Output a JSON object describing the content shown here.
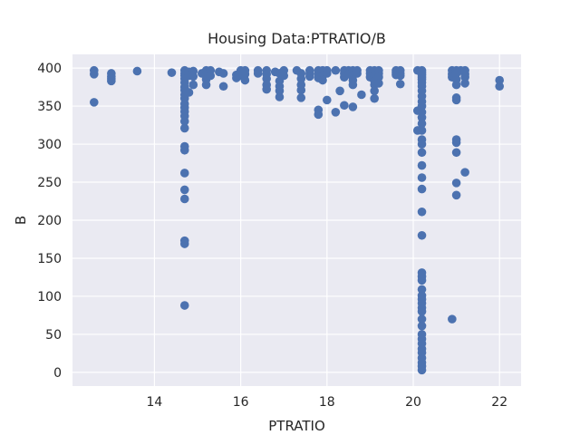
{
  "chart_data": {
    "type": "scatter",
    "title": "Housing Data:PTRATIO/B",
    "xlabel": "PTRATIO",
    "ylabel": "B",
    "xlim": [
      12.1,
      22.5
    ],
    "ylim": [
      -18,
      418
    ],
    "x_ticks": [
      14,
      16,
      18,
      20,
      22
    ],
    "y_ticks": [
      0,
      50,
      100,
      150,
      200,
      250,
      300,
      350,
      400
    ],
    "grid": true,
    "background": "#eaeaf2",
    "marker_color": "#4c72b0",
    "points": [
      [
        12.6,
        396.9
      ],
      [
        12.6,
        392.0
      ],
      [
        12.6,
        355.0
      ],
      [
        13.0,
        393.0
      ],
      [
        13.0,
        389.0
      ],
      [
        13.0,
        386.0
      ],
      [
        13.0,
        383.0
      ],
      [
        13.6,
        396.0
      ],
      [
        14.4,
        394.0
      ],
      [
        14.7,
        396.9
      ],
      [
        14.7,
        393.0
      ],
      [
        14.7,
        390.0
      ],
      [
        14.7,
        386.0
      ],
      [
        14.7,
        381.0
      ],
      [
        14.7,
        375.0
      ],
      [
        14.7,
        371.0
      ],
      [
        14.7,
        365.0
      ],
      [
        14.7,
        360.0
      ],
      [
        14.7,
        353.0
      ],
      [
        14.7,
        348.0
      ],
      [
        14.7,
        343.0
      ],
      [
        14.7,
        337.0
      ],
      [
        14.7,
        330.0
      ],
      [
        14.7,
        321.0
      ],
      [
        14.7,
        297.0
      ],
      [
        14.7,
        292.0
      ],
      [
        14.7,
        262.0
      ],
      [
        14.7,
        240.0
      ],
      [
        14.7,
        228.0
      ],
      [
        14.7,
        173.0
      ],
      [
        14.7,
        169.0
      ],
      [
        14.7,
        88.0
      ],
      [
        14.8,
        395.0
      ],
      [
        14.8,
        390.0
      ],
      [
        14.8,
        368.0
      ],
      [
        14.9,
        396.0
      ],
      [
        14.9,
        389.0
      ],
      [
        14.9,
        378.0
      ],
      [
        15.1,
        393.0
      ],
      [
        15.2,
        396.9
      ],
      [
        15.2,
        392.0
      ],
      [
        15.2,
        385.0
      ],
      [
        15.2,
        378.0
      ],
      [
        15.3,
        396.9
      ],
      [
        15.3,
        390.0
      ],
      [
        15.5,
        395.0
      ],
      [
        15.6,
        393.0
      ],
      [
        15.6,
        376.0
      ],
      [
        15.9,
        391.0
      ],
      [
        15.9,
        387.0
      ],
      [
        16.0,
        396.9
      ],
      [
        16.0,
        390.0
      ],
      [
        16.1,
        396.9
      ],
      [
        16.1,
        392.0
      ],
      [
        16.1,
        384.0
      ],
      [
        16.4,
        396.9
      ],
      [
        16.4,
        393.0
      ],
      [
        16.6,
        396.9
      ],
      [
        16.6,
        392.0
      ],
      [
        16.6,
        386.0
      ],
      [
        16.6,
        378.0
      ],
      [
        16.6,
        372.0
      ],
      [
        16.8,
        395.0
      ],
      [
        16.9,
        393.0
      ],
      [
        16.9,
        383.0
      ],
      [
        16.9,
        376.0
      ],
      [
        16.9,
        370.0
      ],
      [
        16.9,
        362.0
      ],
      [
        17.0,
        396.9
      ],
      [
        17.0,
        390.0
      ],
      [
        17.3,
        396.9
      ],
      [
        17.4,
        393.0
      ],
      [
        17.4,
        386.0
      ],
      [
        17.4,
        378.0
      ],
      [
        17.4,
        371.0
      ],
      [
        17.4,
        361.0
      ],
      [
        17.6,
        396.9
      ],
      [
        17.6,
        393.0
      ],
      [
        17.6,
        389.0
      ],
      [
        17.8,
        396.9
      ],
      [
        17.8,
        392.0
      ],
      [
        17.8,
        387.0
      ],
      [
        17.8,
        345.0
      ],
      [
        17.8,
        339.0
      ],
      [
        17.9,
        396.9
      ],
      [
        17.9,
        390.0
      ],
      [
        17.9,
        384.0
      ],
      [
        18.0,
        396.9
      ],
      [
        18.0,
        393.0
      ],
      [
        18.0,
        358.0
      ],
      [
        18.2,
        396.9
      ],
      [
        18.2,
        342.0
      ],
      [
        18.3,
        370.0
      ],
      [
        18.4,
        396.9
      ],
      [
        18.4,
        393.0
      ],
      [
        18.4,
        388.0
      ],
      [
        18.4,
        351.0
      ],
      [
        18.5,
        396.9
      ],
      [
        18.5,
        392.0
      ],
      [
        18.6,
        396.9
      ],
      [
        18.6,
        390.0
      ],
      [
        18.6,
        384.0
      ],
      [
        18.6,
        378.0
      ],
      [
        18.6,
        349.0
      ],
      [
        18.7,
        396.9
      ],
      [
        18.7,
        393.0
      ],
      [
        18.8,
        365.0
      ],
      [
        19.0,
        396.9
      ],
      [
        19.0,
        393.0
      ],
      [
        19.0,
        388.0
      ],
      [
        19.1,
        396.9
      ],
      [
        19.1,
        390.0
      ],
      [
        19.1,
        383.0
      ],
      [
        19.1,
        378.0
      ],
      [
        19.1,
        370.0
      ],
      [
        19.1,
        360.0
      ],
      [
        19.2,
        396.9
      ],
      [
        19.2,
        393.0
      ],
      [
        19.2,
        388.0
      ],
      [
        19.2,
        380.0
      ],
      [
        19.6,
        396.9
      ],
      [
        19.6,
        394.0
      ],
      [
        19.6,
        391.0
      ],
      [
        19.7,
        396.9
      ],
      [
        19.7,
        393.0
      ],
      [
        19.7,
        390.0
      ],
      [
        19.7,
        379.0
      ],
      [
        20.1,
        396.9
      ],
      [
        20.1,
        344.0
      ],
      [
        20.1,
        318.0
      ],
      [
        20.2,
        396.9
      ],
      [
        20.2,
        394.0
      ],
      [
        20.2,
        391.0
      ],
      [
        20.2,
        388.0
      ],
      [
        20.2,
        385.0
      ],
      [
        20.2,
        381.0
      ],
      [
        20.2,
        376.0
      ],
      [
        20.2,
        370.0
      ],
      [
        20.2,
        363.0
      ],
      [
        20.2,
        356.0
      ],
      [
        20.2,
        350.0
      ],
      [
        20.2,
        342.0
      ],
      [
        20.2,
        335.0
      ],
      [
        20.2,
        327.0
      ],
      [
        20.2,
        318.0
      ],
      [
        20.2,
        306.0
      ],
      [
        20.2,
        300.0
      ],
      [
        20.2,
        289.0
      ],
      [
        20.2,
        272.0
      ],
      [
        20.2,
        256.0
      ],
      [
        20.2,
        241.0
      ],
      [
        20.2,
        211.0
      ],
      [
        20.2,
        180.0
      ],
      [
        20.2,
        131.0
      ],
      [
        20.2,
        126.0
      ],
      [
        20.2,
        121.0
      ],
      [
        20.2,
        109.0
      ],
      [
        20.2,
        101.0
      ],
      [
        20.2,
        96.0
      ],
      [
        20.2,
        91.0
      ],
      [
        20.2,
        85.0
      ],
      [
        20.2,
        80.0
      ],
      [
        20.2,
        70.0
      ],
      [
        20.2,
        61.0
      ],
      [
        20.2,
        50.0
      ],
      [
        20.2,
        44.0
      ],
      [
        20.2,
        38.0
      ],
      [
        20.2,
        31.0
      ],
      [
        20.2,
        26.0
      ],
      [
        20.2,
        19.0
      ],
      [
        20.2,
        13.0
      ],
      [
        20.2,
        8.0
      ],
      [
        20.2,
        3.0
      ],
      [
        20.9,
        396.9
      ],
      [
        20.9,
        392.0
      ],
      [
        20.9,
        388.0
      ],
      [
        20.9,
        70.0
      ],
      [
        21.0,
        396.9
      ],
      [
        21.0,
        393.0
      ],
      [
        21.0,
        385.0
      ],
      [
        21.0,
        378.0
      ],
      [
        21.0,
        361.0
      ],
      [
        21.0,
        358.0
      ],
      [
        21.0,
        306.0
      ],
      [
        21.0,
        302.0
      ],
      [
        21.0,
        289.0
      ],
      [
        21.0,
        249.0
      ],
      [
        21.0,
        233.0
      ],
      [
        21.1,
        396.9
      ],
      [
        21.2,
        396.9
      ],
      [
        21.2,
        392.0
      ],
      [
        21.2,
        388.0
      ],
      [
        21.2,
        380.0
      ],
      [
        21.2,
        263.0
      ],
      [
        22.0,
        384.0
      ],
      [
        22.0,
        376.0
      ]
    ]
  }
}
